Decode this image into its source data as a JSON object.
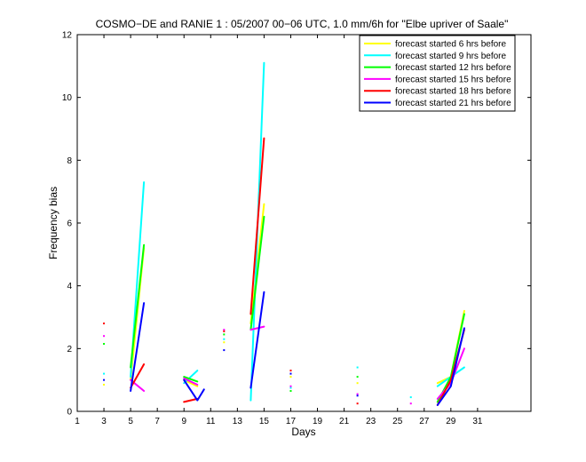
{
  "chart_data": {
    "type": "line",
    "title": "COSMO−DE and RANIE 1 : 05/2007 00−06 UTC, 1.0 mm/6h for \"Elbe upriver of Saale\"",
    "xlabel": "Days",
    "ylabel": "Frequency bias",
    "xlim": [
      1,
      35
    ],
    "ylim": [
      0,
      12
    ],
    "xticks": [
      "1",
      "3",
      "5",
      "7",
      "9",
      "11",
      "13",
      "15",
      "17",
      "19",
      "21",
      "23",
      "25",
      "27",
      "29",
      "31"
    ],
    "yticks": [
      "0",
      "2",
      "4",
      "6",
      "8",
      "10",
      "12"
    ],
    "grid": false,
    "legend_position": "top-right",
    "series": [
      {
        "name": "forecast started 6 hrs before",
        "color": "#ffff00",
        "segments": [
          [
            [
              3,
              0.85
            ]
          ],
          [
            [
              5,
              1.0
            ],
            [
              6,
              5.2
            ]
          ],
          [
            [
              9,
              1.0
            ],
            [
              10,
              0.8
            ]
          ],
          [
            [
              12,
              2.2
            ]
          ],
          [
            [
              14,
              2.8
            ],
            [
              15,
              6.6
            ]
          ],
          [
            [
              17,
              1.1
            ]
          ],
          [
            [
              22,
              0.9
            ]
          ],
          [
            [
              28,
              0.9
            ],
            [
              29,
              1.1
            ],
            [
              30,
              3.2
            ]
          ]
        ]
      },
      {
        "name": "forecast started 9 hrs before",
        "color": "#00ffff",
        "segments": [
          [
            [
              3,
              1.2
            ]
          ],
          [
            [
              5,
              1.1
            ],
            [
              6,
              7.3
            ]
          ],
          [
            [
              9,
              0.9
            ],
            [
              10,
              1.3
            ]
          ],
          [
            [
              12,
              2.3
            ]
          ],
          [
            [
              14,
              0.35
            ],
            [
              15,
              11.1
            ]
          ],
          [
            [
              17,
              0.75
            ]
          ],
          [
            [
              22,
              1.4
            ]
          ],
          [
            [
              26,
              0.45
            ]
          ],
          [
            [
              28,
              0.8
            ],
            [
              29,
              1.1
            ],
            [
              30,
              1.4
            ]
          ]
        ]
      },
      {
        "name": "forecast started 12 hrs before",
        "color": "#00ff00",
        "segments": [
          [
            [
              3,
              2.15
            ]
          ],
          [
            [
              5,
              1.4
            ],
            [
              6,
              5.3
            ]
          ],
          [
            [
              9,
              1.1
            ],
            [
              10,
              0.95
            ]
          ],
          [
            [
              12,
              2.45
            ]
          ],
          [
            [
              14,
              2.6
            ],
            [
              15,
              6.2
            ]
          ],
          [
            [
              17,
              0.65
            ]
          ],
          [
            [
              22,
              1.1
            ]
          ],
          [
            [
              28,
              0.3
            ],
            [
              29,
              1.1
            ],
            [
              30,
              3.1
            ]
          ]
        ]
      },
      {
        "name": "forecast started 15 hrs before",
        "color": "#ff00ff",
        "segments": [
          [
            [
              3,
              2.4
            ]
          ],
          [
            [
              5,
              1.0
            ],
            [
              6,
              0.65
            ]
          ],
          [
            [
              9,
              1.05
            ],
            [
              10,
              0.85
            ]
          ],
          [
            [
              12,
              2.6
            ]
          ],
          [
            [
              14,
              2.6
            ],
            [
              15,
              2.7
            ]
          ],
          [
            [
              17,
              0.8
            ]
          ],
          [
            [
              22,
              0.55
            ]
          ],
          [
            [
              26,
              0.25
            ]
          ],
          [
            [
              28,
              0.4
            ],
            [
              29,
              0.9
            ],
            [
              30,
              2.0
            ]
          ]
        ]
      },
      {
        "name": "forecast started 18 hrs before",
        "color": "#ff0000",
        "segments": [
          [
            [
              3,
              2.8
            ]
          ],
          [
            [
              5,
              0.75
            ],
            [
              6,
              1.5
            ]
          ],
          [
            [
              9,
              0.3
            ],
            [
              10,
              0.4
            ]
          ],
          [
            [
              12,
              2.55
            ]
          ],
          [
            [
              14,
              3.1
            ],
            [
              15,
              8.7
            ]
          ],
          [
            [
              17,
              1.3
            ]
          ],
          [
            [
              22,
              0.25
            ]
          ],
          [
            [
              28,
              0.2
            ],
            [
              29,
              1.0
            ],
            [
              30,
              2.6
            ]
          ]
        ]
      },
      {
        "name": "forecast started 21 hrs before",
        "color": "#0000ff",
        "segments": [
          [
            [
              3,
              1.0
            ]
          ],
          [
            [
              5,
              0.65
            ],
            [
              6,
              3.45
            ]
          ],
          [
            [
              9,
              1.0
            ],
            [
              10,
              0.35
            ],
            [
              10.5,
              0.7
            ]
          ],
          [
            [
              12,
              1.95
            ]
          ],
          [
            [
              14,
              0.75
            ],
            [
              15,
              3.8
            ]
          ],
          [
            [
              17,
              1.2
            ]
          ],
          [
            [
              22,
              0.5
            ]
          ],
          [
            [
              28,
              0.2
            ],
            [
              29,
              0.8
            ],
            [
              30,
              2.65
            ]
          ]
        ]
      }
    ]
  }
}
